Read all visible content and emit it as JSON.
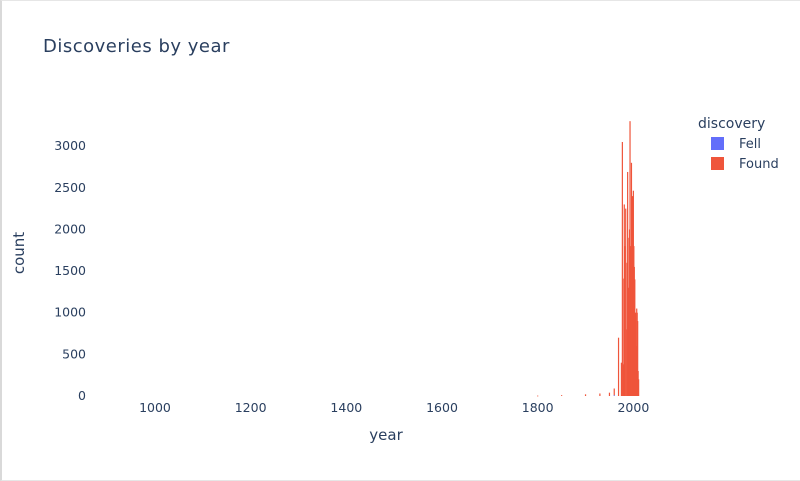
{
  "chart_data": {
    "type": "bar",
    "title": "Discoveries by year",
    "xlabel": "year",
    "ylabel": "count",
    "xlim": [
      860,
      2110
    ],
    "ylim": [
      0,
      3350
    ],
    "x_ticks": [
      1000,
      1200,
      1400,
      1600,
      1800,
      2000
    ],
    "y_ticks": [
      0,
      500,
      1000,
      1500,
      2000,
      2500,
      3000
    ],
    "legend": {
      "title": "discovery",
      "position": "top-right"
    },
    "series": [
      {
        "name": "Fell",
        "color": "#636efa",
        "x": [
          1960,
          1980,
          2000
        ],
        "values": [
          10,
          10,
          15
        ]
      },
      {
        "name": "Found",
        "color": "#ef553b",
        "x": [
          1800,
          1850,
          1900,
          1930,
          1950,
          1960,
          1969,
          1975,
          1977,
          1979,
          1980,
          1981,
          1982,
          1984,
          1986,
          1987,
          1988,
          1990,
          1991,
          1992,
          1993,
          1994,
          1995,
          1996,
          1997,
          1998,
          1999,
          2000,
          2001,
          2002,
          2003,
          2004,
          2005,
          2006,
          2007,
          2008,
          2009,
          2010,
          2011
        ],
        "values": [
          5,
          10,
          20,
          30,
          40,
          80,
          700,
          400,
          3050,
          380,
          1400,
          2300,
          1800,
          2250,
          800,
          1600,
          2690,
          1300,
          1900,
          2000,
          3300,
          1500,
          1800,
          2800,
          1700,
          2400,
          900,
          2450,
          1800,
          1550,
          1400,
          1000,
          1000,
          600,
          1050,
          1000,
          900,
          300,
          200
        ]
      }
    ]
  }
}
